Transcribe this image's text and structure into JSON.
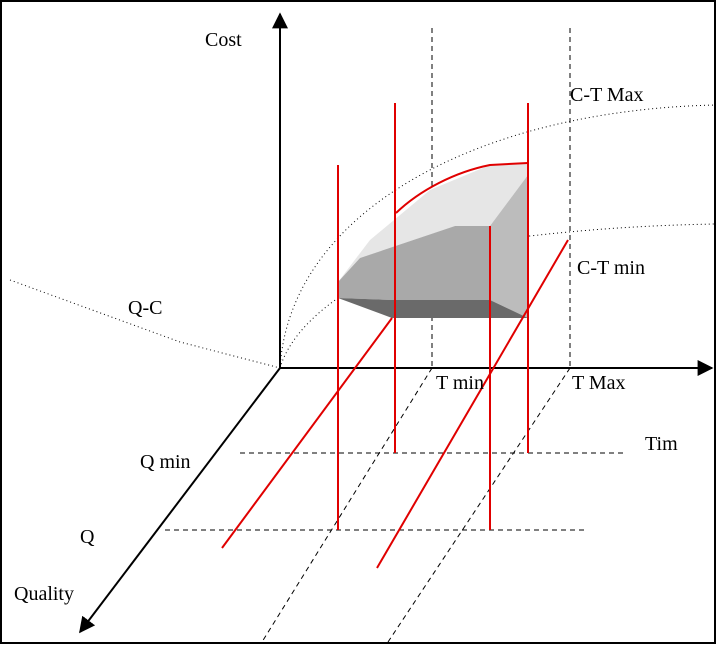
{
  "labels": {
    "cost": "Cost",
    "ct_max": "C-T Max",
    "ct_min": "C-T min",
    "qc": "Q-C",
    "t_min": "T min",
    "t_max": "T Max",
    "time": "Tim",
    "q_min": "Q min",
    "q": "Q",
    "quality": "Quality"
  },
  "colors": {
    "axis": "#000000",
    "constraint_line": "#e00000",
    "guide_line": "#000000",
    "solid_top": "#e6e6e6",
    "solid_front": "#a9a9a9",
    "solid_side": "#bcbcbc",
    "solid_bottom": "#6a6a6a"
  }
}
